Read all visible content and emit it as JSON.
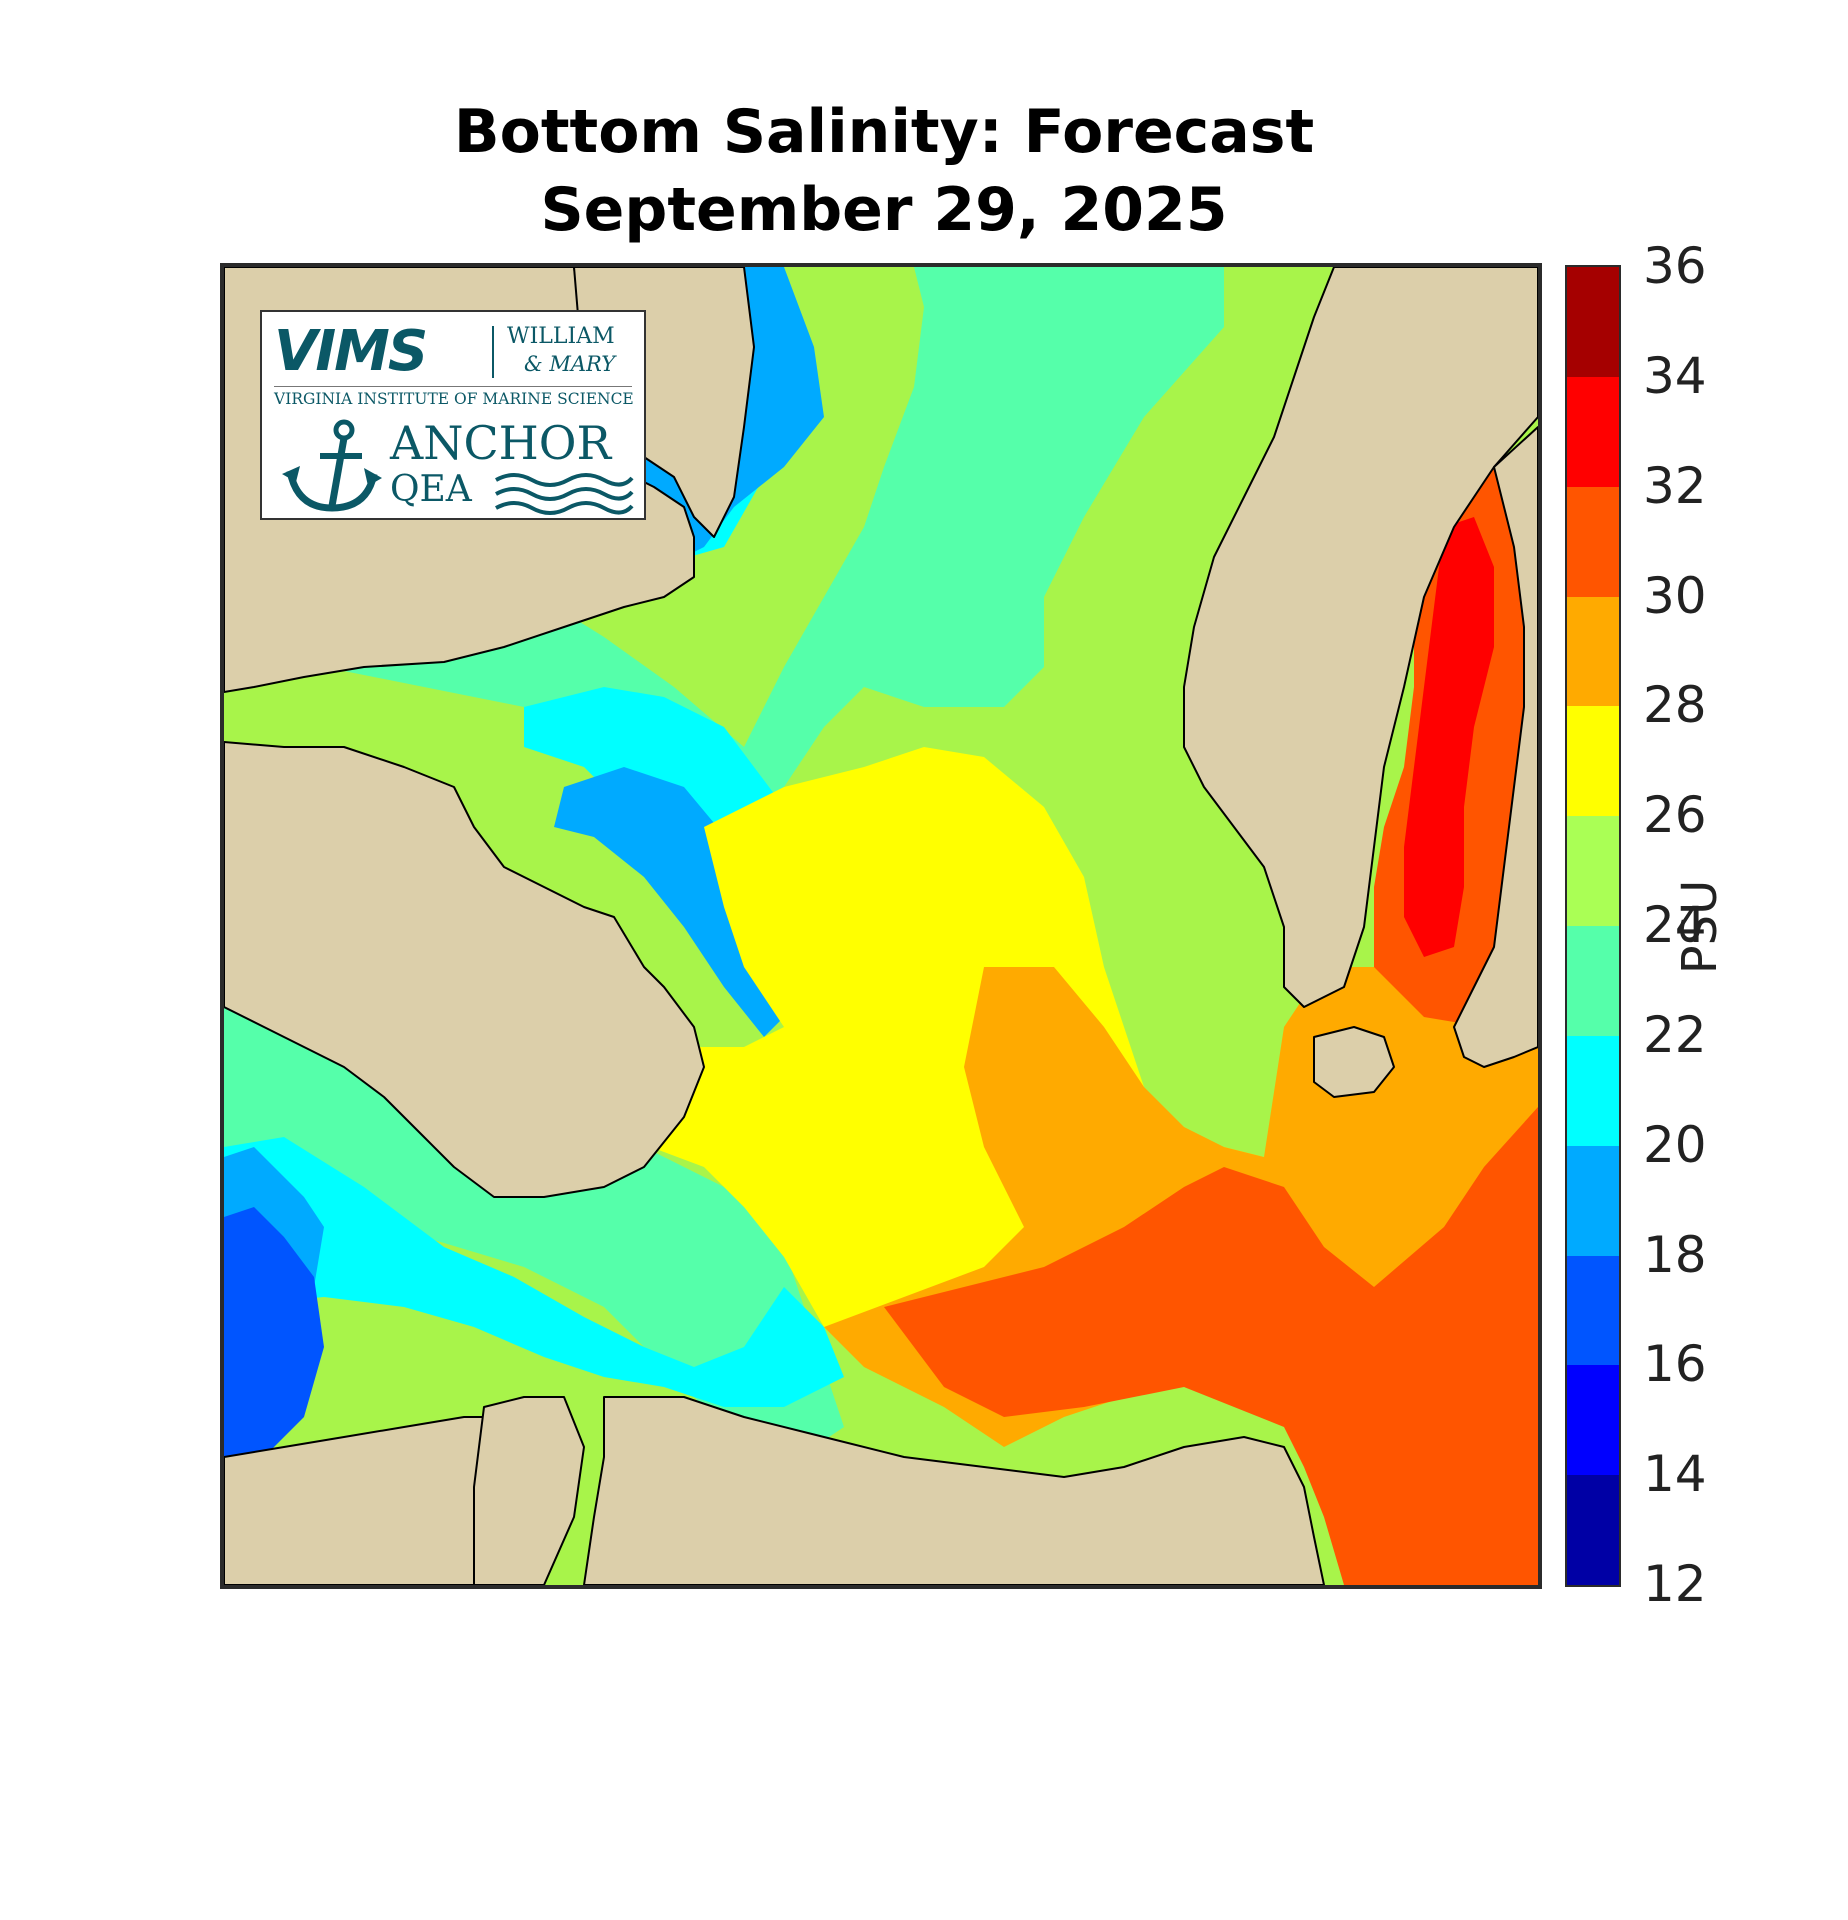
{
  "title": {
    "line1": "Bottom Salinity: Forecast",
    "line2": "September 29, 2025"
  },
  "colorbar": {
    "unit": "PSU",
    "ticks": [
      "36",
      "34",
      "32",
      "30",
      "28",
      "26",
      "24",
      "22",
      "20",
      "18",
      "16",
      "14",
      "12"
    ],
    "range": [
      12,
      36
    ],
    "bins": [
      {
        "from": 34,
        "to": 36,
        "color": "#a50000"
      },
      {
        "from": 32,
        "to": 34,
        "color": "#ff0000"
      },
      {
        "from": 30,
        "to": 32,
        "color": "#ff5500"
      },
      {
        "from": 28,
        "to": 30,
        "color": "#ffaa00"
      },
      {
        "from": 26,
        "to": 28,
        "color": "#ffff00"
      },
      {
        "from": 24,
        "to": 26,
        "color": "#aaff55"
      },
      {
        "from": 22,
        "to": 24,
        "color": "#55ffaa"
      },
      {
        "from": 20,
        "to": 22,
        "color": "#00ffff"
      },
      {
        "from": 18,
        "to": 20,
        "color": "#00aaff"
      },
      {
        "from": 16,
        "to": 18,
        "color": "#0055ff"
      },
      {
        "from": 14,
        "to": 16,
        "color": "#0000ff"
      },
      {
        "from": 12,
        "to": 14,
        "color": "#0000a5"
      }
    ]
  },
  "map": {
    "land_color": "#dccfaa",
    "coastline_color": "#000000"
  },
  "logo": {
    "vims": "VIMS",
    "wm_line1": "WILLIAM",
    "wm_line2": "& MARY",
    "vims_full": "VIRGINIA INSTITUTE OF MARINE SCIENCE",
    "anchor_word": "ANCHOR",
    "qea_word": "QEA"
  }
}
